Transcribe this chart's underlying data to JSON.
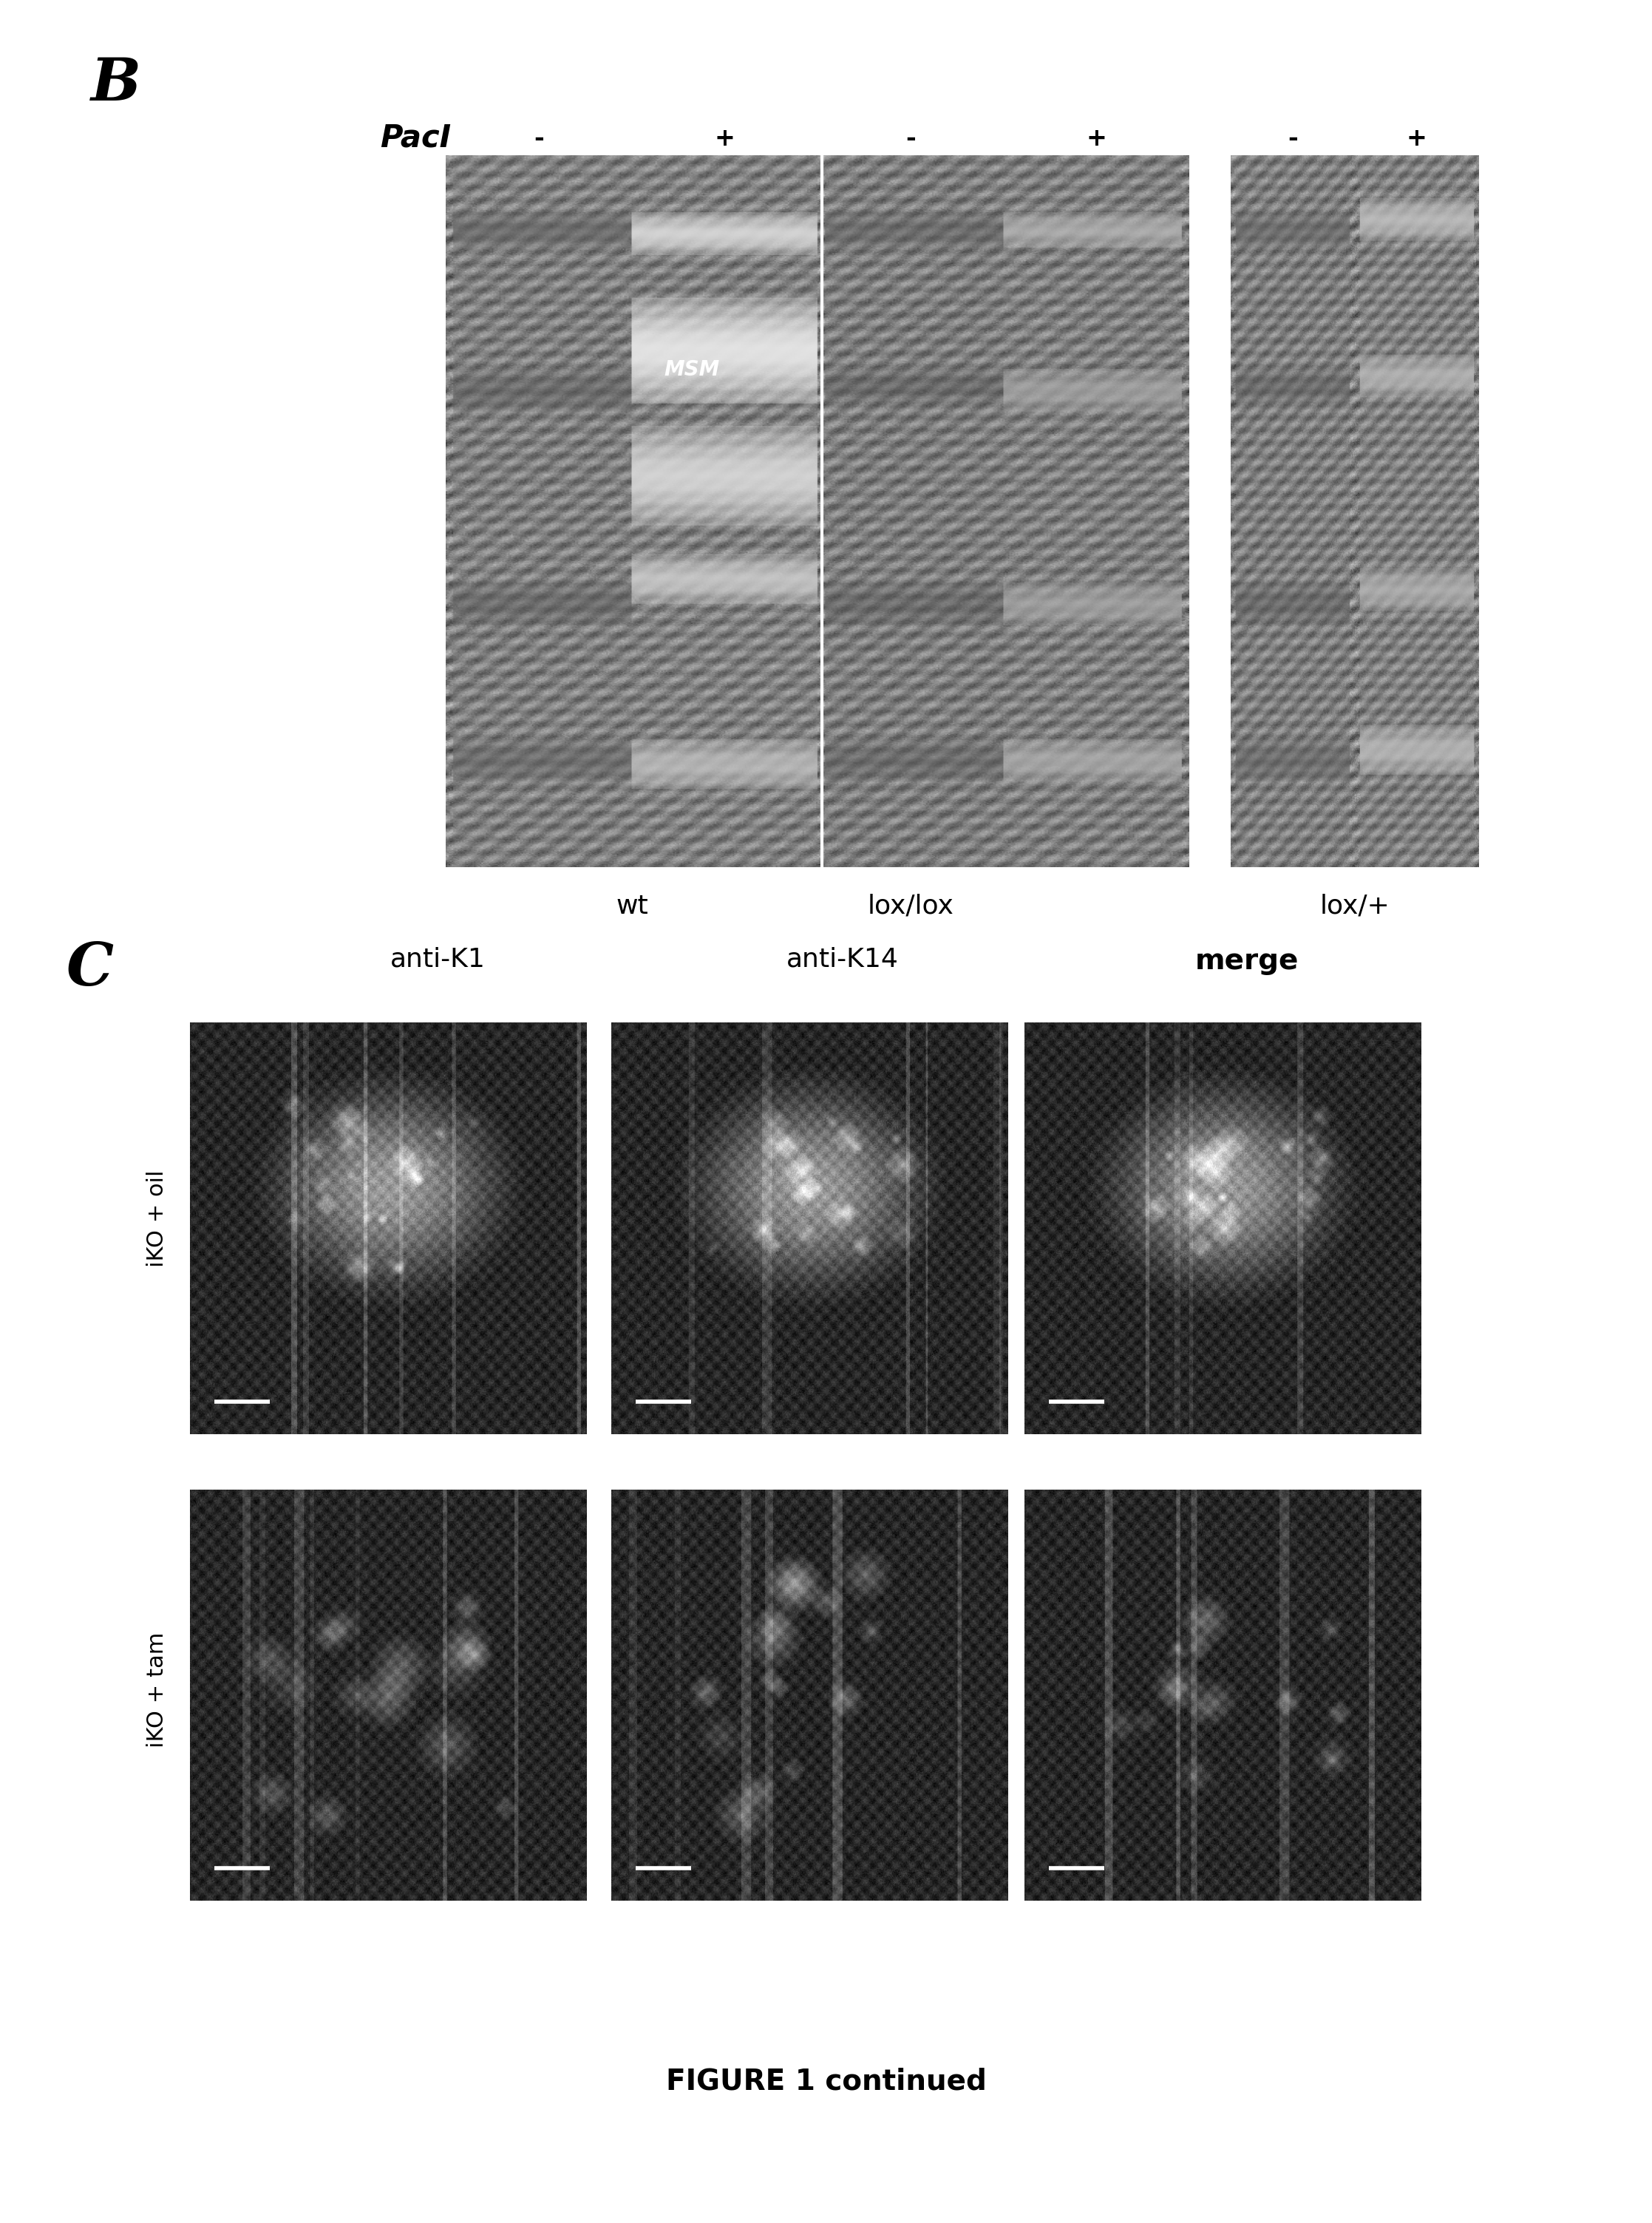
{
  "bg_color": "#ffffff",
  "panel_B_label": "B",
  "panel_C_label": "C",
  "PacI_label": "PacI",
  "minus_plus": [
    "-",
    "+",
    "-",
    "+",
    "-",
    "+"
  ],
  "genotype_labels": [
    "wt",
    "lox/lox",
    "lox/+"
  ],
  "MSM_label": "MSM",
  "col_labels_C": [
    "anti-K1",
    "anti-K14",
    "merge"
  ],
  "row_labels_C": [
    "iKO + oil",
    "iKO + tam"
  ],
  "figure_caption": "FIGURE 1 continued",
  "gel_bg_color": "#888888",
  "micro_bg_color": "#333333"
}
